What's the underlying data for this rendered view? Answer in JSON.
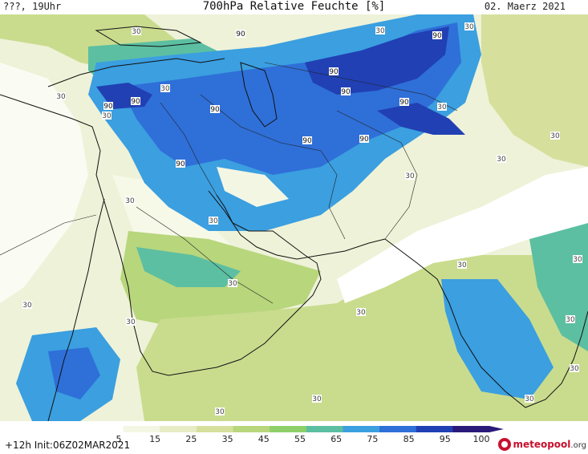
{
  "header": {
    "run_label": "???, 19Uhr",
    "title": "700hPa Relative Feuchte [%]",
    "date": "02. Maerz 2021"
  },
  "legend": {
    "ticks": [
      "5",
      "15",
      "25",
      "35",
      "45",
      "55",
      "65",
      "75",
      "85",
      "95",
      "100"
    ],
    "colors": [
      "#ffffff",
      "#f4f6e4",
      "#e8ecc4",
      "#d6e09c",
      "#b8d67c",
      "#8ecf6a",
      "#5cbfa2",
      "#3b9fe0",
      "#2f6fd8",
      "#2140b4",
      "#2a1a7a"
    ]
  },
  "footer": {
    "forecast_info": "+12h Init:06Z02MAR2021",
    "logo_brand": "meteopool",
    "logo_suffix": ".org"
  },
  "map": {
    "contour_labels": [
      "30",
      "90"
    ]
  }
}
